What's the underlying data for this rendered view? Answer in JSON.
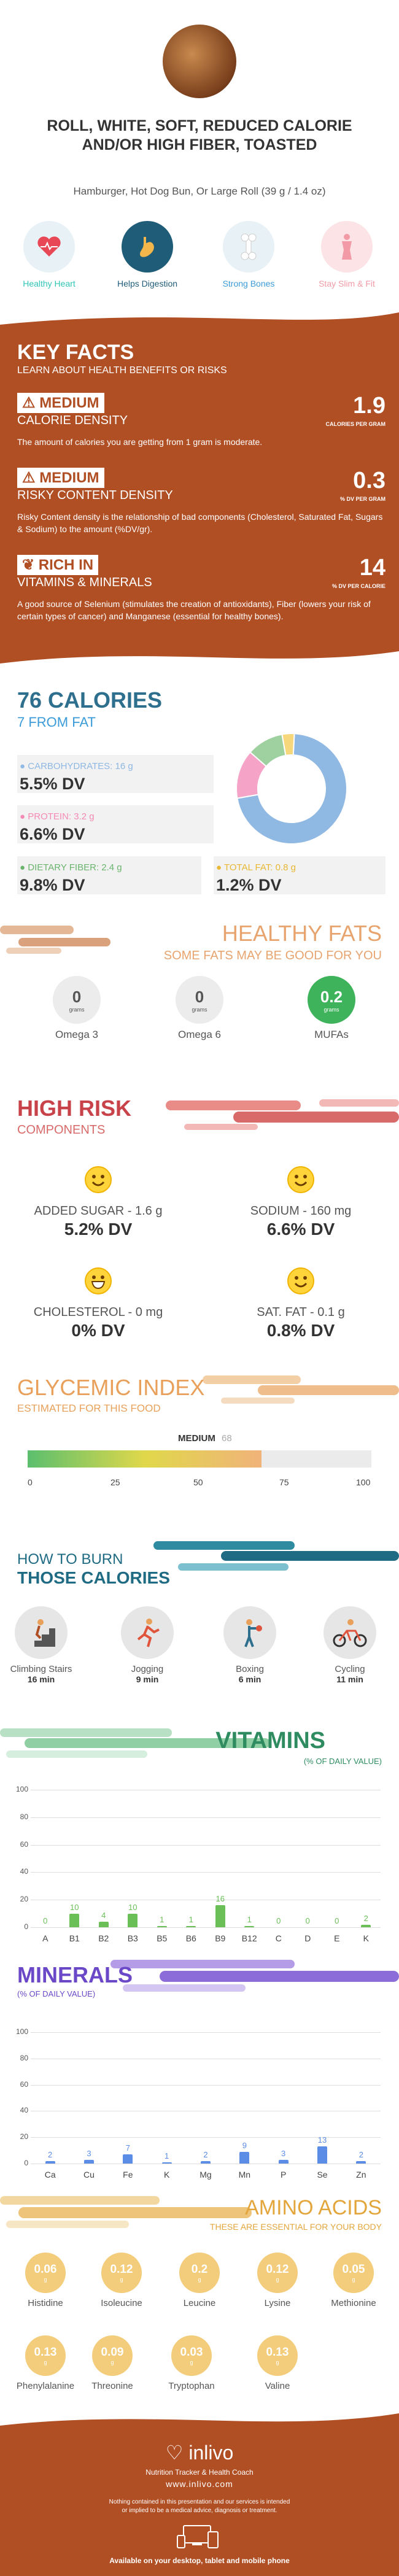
{
  "header": {
    "title": "ROLL, WHITE, SOFT, REDUCED CALORIE AND/OR HIGH FIBER, TOASTED",
    "subtitle": "Hamburger, Hot Dog Bun, Or Large Roll (39 g / 1.4 oz)"
  },
  "benefits": [
    {
      "label": "Healthy Heart",
      "color": "#2ec4b6"
    },
    {
      "label": "Helps Digestion",
      "color": "#1f5c78"
    },
    {
      "label": "Strong Bones",
      "color": "#3b9bd8"
    },
    {
      "label": "Stay Slim & Fit",
      "color": "#f29aa5"
    }
  ],
  "key_facts": {
    "title": "KEY FACTS",
    "subtitle": "LEARN ABOUT HEALTH BENEFITS OR RISKS",
    "items": [
      {
        "level": "MEDIUM",
        "name": "CALORIE DENSITY",
        "value": "1.9",
        "unit": "CALORIES PER GRAM",
        "desc": "The amount of calories you are getting from 1 gram is moderate."
      },
      {
        "level": "MEDIUM",
        "name": "RISKY CONTENT DENSITY",
        "value": "0.3",
        "unit": "% DV PER GRAM",
        "desc": "Risky Content density is the relationship of bad components (Cholesterol, Saturated Fat, Sugars & Sodium) to the amount (%DV/gr)."
      },
      {
        "level": "RICH IN",
        "name": "VITAMINS & MINERALS",
        "value": "14",
        "unit": "% DV PER CALORIE",
        "desc": "A good source of Selenium (stimulates the creation of antioxidants), Fiber (lowers your risk of certain types of cancer) and Manganese (essential for healthy bones)."
      }
    ]
  },
  "calories": {
    "title": "76 CALORIES",
    "subtitle": "7 FROM FAT",
    "carbs_label": "CARBOHYDRATES: 16 g",
    "carbs_dv": "5.5% DV",
    "protein_label": "PROTEIN: 3.2 g",
    "protein_dv": "6.6% DV",
    "fiber_label": "DIETARY FIBER: 2.4 g",
    "fiber_dv": "9.8% DV",
    "fat_label": "TOTAL FAT: 0.8 g",
    "fat_dv": "1.2% DV"
  },
  "chart_data": [
    {
      "type": "pie",
      "categories": [
        "CARBOHYDRATES",
        "PROTEIN",
        "DIETARY FIBER",
        "TOTAL FAT"
      ],
      "values": [
        16,
        3.2,
        2.4,
        0.8
      ],
      "colors": [
        "#8fb8e3",
        "#f5a3c7",
        "#9ed0a0",
        "#f6d77b"
      ]
    },
    {
      "type": "bar",
      "title": "VITAMINS",
      "subtitle": "(% OF DAILY VALUE)",
      "categories": [
        "A",
        "B1",
        "B2",
        "B3",
        "B5",
        "B6",
        "B9",
        "B12",
        "C",
        "D",
        "E",
        "K"
      ],
      "values": [
        0,
        10,
        4,
        10,
        1,
        1,
        16,
        1,
        0,
        0,
        0,
        2
      ],
      "ylim": [
        0,
        100
      ]
    },
    {
      "type": "bar",
      "title": "MINERALS",
      "subtitle": "(% OF DAILY VALUE)",
      "categories": [
        "Ca",
        "Cu",
        "Fe",
        "K",
        "Mg",
        "Mn",
        "P",
        "Se",
        "Zn"
      ],
      "values": [
        2,
        3,
        7,
        1,
        2,
        9,
        3,
        13,
        2
      ],
      "ylim": [
        0,
        100
      ]
    }
  ],
  "healthy_fats": {
    "title": "HEALTHY FATS",
    "subtitle": "SOME FATS MAY BE GOOD FOR YOU",
    "items": [
      {
        "value": "0",
        "unit": "grams",
        "name": "Omega 3"
      },
      {
        "value": "0",
        "unit": "grams",
        "name": "Omega 6"
      },
      {
        "value": "0.2",
        "unit": "grams",
        "name": "MUFAs"
      }
    ]
  },
  "high_risk": {
    "title": "HIGH RISK",
    "subtitle": "COMPONENTS",
    "items": [
      {
        "name": "ADDED SUGAR - 1.6 g",
        "dv": "5.2% DV"
      },
      {
        "name": "SODIUM - 160 mg",
        "dv": "6.6% DV"
      },
      {
        "name": "CHOLESTEROL - 0 mg",
        "dv": "0% DV"
      },
      {
        "name": "SAT. FAT - 0.1 g",
        "dv": "0.8% DV"
      }
    ]
  },
  "glycemic": {
    "title": "GLYCEMIC INDEX",
    "subtitle": "ESTIMATED FOR THIS FOOD",
    "level": "MEDIUM",
    "value": 68,
    "value_label": "68",
    "ticks": [
      "0",
      "25",
      "50",
      "75",
      "100"
    ]
  },
  "burn": {
    "title1": "HOW TO BURN",
    "title2": "THOSE CALORIES",
    "items": [
      {
        "name": "Climbing Stairs",
        "time": "16 min"
      },
      {
        "name": "Jogging",
        "time": "9 min"
      },
      {
        "name": "Boxing",
        "time": "6 min"
      },
      {
        "name": "Cycling",
        "time": "11 min"
      }
    ]
  },
  "vitamins": {
    "title": "VITAMINS",
    "subtitle": "(% OF DAILY VALUE)",
    "yticks": [
      "100",
      "80",
      "60",
      "40",
      "20",
      "0"
    ]
  },
  "minerals": {
    "title": "MINERALS",
    "subtitle": "(% OF DAILY VALUE)",
    "yticks": [
      "100",
      "80",
      "60",
      "40",
      "20",
      "0"
    ]
  },
  "amino": {
    "title": "AMINO ACIDS",
    "subtitle": "THESE ARE ESSENTIAL FOR YOUR BODY",
    "unit": "g",
    "items": [
      {
        "name": "Histidine",
        "value": "0.06"
      },
      {
        "name": "Isoleucine",
        "value": "0.12"
      },
      {
        "name": "Leucine",
        "value": "0.2"
      },
      {
        "name": "Lysine",
        "value": "0.12"
      },
      {
        "name": "Methionine",
        "value": "0.05"
      },
      {
        "name": "Phenylalanine",
        "value": "0.13"
      },
      {
        "name": "Threonine",
        "value": "0.09"
      },
      {
        "name": "Tryptophan",
        "value": "0.03"
      },
      {
        "name": "Valine",
        "value": "0.13"
      }
    ]
  },
  "footer": {
    "brand": "inlivo",
    "tagline": "Nutrition Tracker & Health Coach",
    "url": "www.inlivo.com",
    "disclaimer": "Nothing contained in this presentation and our services is intended or implied to be a medical advice, diagnosis or treatment.",
    "available": "Available on your desktop, tablet and mobile phone"
  }
}
